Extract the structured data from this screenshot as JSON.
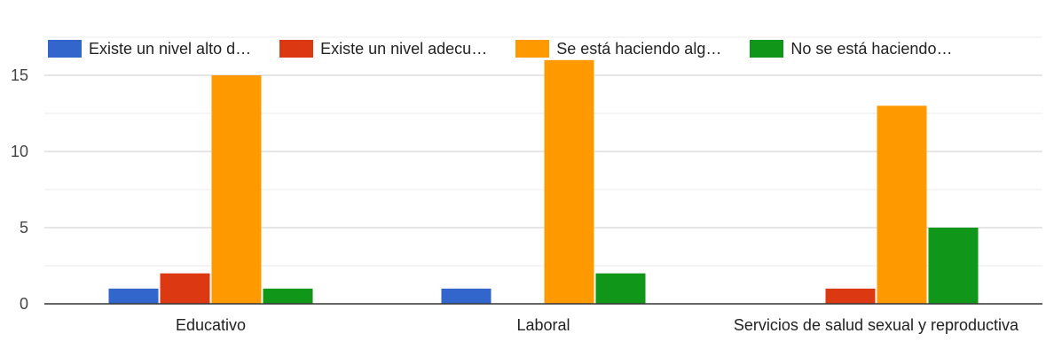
{
  "chart_data": {
    "type": "bar",
    "categories": [
      "Educativo",
      "Laboral",
      "Servicios de salud sexual y reproductiva"
    ],
    "series": [
      {
        "name": "Existe un nivel alto d…",
        "color": "#3366cc",
        "values": [
          1,
          1,
          0
        ]
      },
      {
        "name": "Existe un nivel adecu…",
        "color": "#dc3912",
        "values": [
          2,
          0,
          1
        ]
      },
      {
        "name": "Se está haciendo alg…",
        "color": "#ff9900",
        "values": [
          15,
          16,
          13
        ]
      },
      {
        "name": "No se está haciendo…",
        "color": "#109618",
        "values": [
          1,
          2,
          5
        ]
      }
    ],
    "yticks": [
      0,
      5,
      10,
      15
    ],
    "ylim": [
      0,
      17.5
    ],
    "grid": true,
    "legend_position": "top"
  }
}
